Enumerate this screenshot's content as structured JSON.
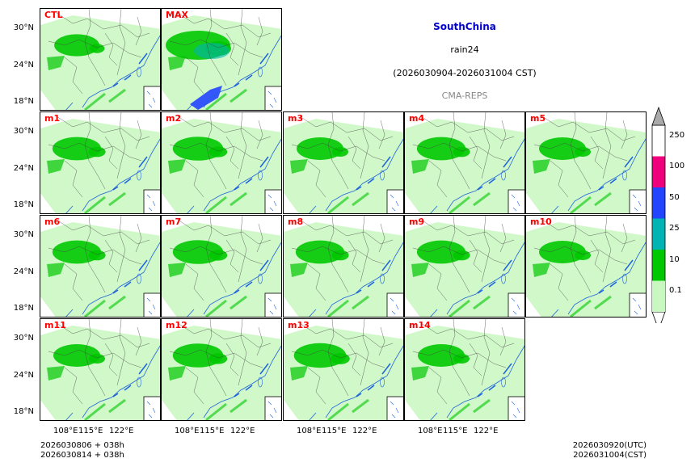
{
  "titles": {
    "region": "SouthChina",
    "variable": "rain24",
    "period": "(2026030904-2026031004 CST)",
    "model": "CMA-REPS"
  },
  "panels": [
    {
      "label": "CTL",
      "intensity": 0.45
    },
    {
      "label": "MAX",
      "intensity": 1.0
    },
    {
      "label": "m1",
      "intensity": 0.55
    },
    {
      "label": "m2",
      "intensity": 0.6
    },
    {
      "label": "m3",
      "intensity": 0.5
    },
    {
      "label": "m4",
      "intensity": 0.55
    },
    {
      "label": "m5",
      "intensity": 0.5
    },
    {
      "label": "m6",
      "intensity": 0.55
    },
    {
      "label": "m7",
      "intensity": 0.6
    },
    {
      "label": "m8",
      "intensity": 0.55
    },
    {
      "label": "m9",
      "intensity": 0.55
    },
    {
      "label": "m10",
      "intensity": 0.5
    },
    {
      "label": "m11",
      "intensity": 0.5
    },
    {
      "label": "m12",
      "intensity": 0.6
    },
    {
      "label": "m13",
      "intensity": 0.65
    },
    {
      "label": "m14",
      "intensity": 0.5
    }
  ],
  "axes": {
    "lat_ticks": [
      "30°N",
      "24°N",
      "18°N"
    ],
    "lon_ticks": [
      "108°E",
      "115°E",
      "122°E"
    ]
  },
  "colorbar": {
    "levels": [
      "0.1",
      "10",
      "25",
      "50",
      "100",
      "250"
    ],
    "colors": [
      "#ffffff",
      "#c8f7c0",
      "#00c800",
      "#00b4b4",
      "#2244ff",
      "#f0007c",
      "#aaaaaa"
    ]
  },
  "footer": {
    "init_line1": "2026030806  +  038h",
    "init_line2": "2026030814  +  038h",
    "valid_utc": "2026030920(UTC)",
    "valid_cst": "2026031004(CST)"
  }
}
